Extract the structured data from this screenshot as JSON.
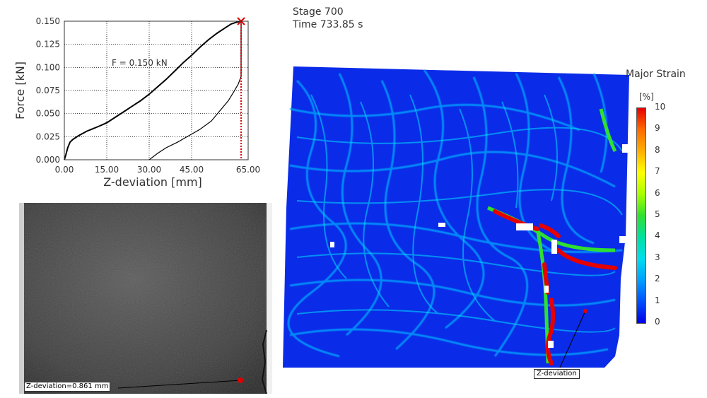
{
  "stage": {
    "stage_text": "Stage 700",
    "time_text": "Time  733.85 s"
  },
  "force_chart": {
    "annotation": "F = 0.150 kN",
    "xlabel": "Z-deviation [mm]",
    "ylabel": "Force [kN]",
    "xticks": [
      "0.00",
      "15.00",
      "30.00",
      "45.00",
      "65.00"
    ],
    "yticks": [
      "0.000",
      "0.025",
      "0.050",
      "0.075",
      "0.100",
      "0.125",
      "0.150"
    ],
    "colors": {
      "curve": "#000000",
      "marker": "#e00000",
      "grid": "#333333"
    }
  },
  "chart_data": {
    "type": "line",
    "xlabel": "Z-deviation [mm]",
    "ylabel": "Force [kN]",
    "xlim": [
      0,
      65
    ],
    "ylim": [
      0,
      0.15
    ],
    "grid": true,
    "series": [
      {
        "values_xy": [
          [
            0,
            0
          ],
          [
            0.5,
            0.005
          ],
          [
            1.2,
            0.013
          ],
          [
            2,
            0.019
          ],
          [
            3,
            0.022
          ],
          [
            5,
            0.026
          ],
          [
            8,
            0.031
          ],
          [
            12,
            0.036
          ],
          [
            15,
            0.04
          ],
          [
            18,
            0.046
          ],
          [
            21,
            0.052
          ],
          [
            24,
            0.058
          ],
          [
            27,
            0.064
          ],
          [
            30,
            0.071
          ],
          [
            33,
            0.079
          ],
          [
            36,
            0.087
          ],
          [
            39,
            0.096
          ],
          [
            42,
            0.105
          ],
          [
            45,
            0.113
          ],
          [
            48,
            0.122
          ],
          [
            51,
            0.13
          ],
          [
            54,
            0.137
          ],
          [
            57,
            0.143
          ],
          [
            59,
            0.147
          ],
          [
            61,
            0.149
          ],
          [
            62.5,
            0.15
          ]
        ]
      },
      {
        "values_xy": [
          [
            62.5,
            0.15
          ],
          [
            62.5,
            0.09
          ],
          [
            61.5,
            0.082
          ],
          [
            60,
            0.074
          ],
          [
            58,
            0.064
          ],
          [
            55,
            0.053
          ],
          [
            52,
            0.042
          ],
          [
            48,
            0.033
          ],
          [
            44,
            0.026
          ],
          [
            40,
            0.019
          ],
          [
            36,
            0.013
          ],
          [
            33,
            0.007
          ],
          [
            30,
            0.0
          ]
        ]
      }
    ],
    "cursor_x": 62.5,
    "cursor_force": 0.15
  },
  "photo": {
    "label": "Z-deviation=0.861 mm"
  },
  "strain_map": {
    "label": "Z-deviation"
  },
  "legend": {
    "title": "Major Strain",
    "unit": "[%]",
    "ticks": [
      "10",
      "9",
      "8",
      "7",
      "6",
      "5",
      "4",
      "3",
      "2",
      "1",
      "0"
    ],
    "colors": [
      "#e60000",
      "#ffff00",
      "#30e030",
      "#00ddee",
      "#0050ff",
      "#0000e6"
    ]
  }
}
